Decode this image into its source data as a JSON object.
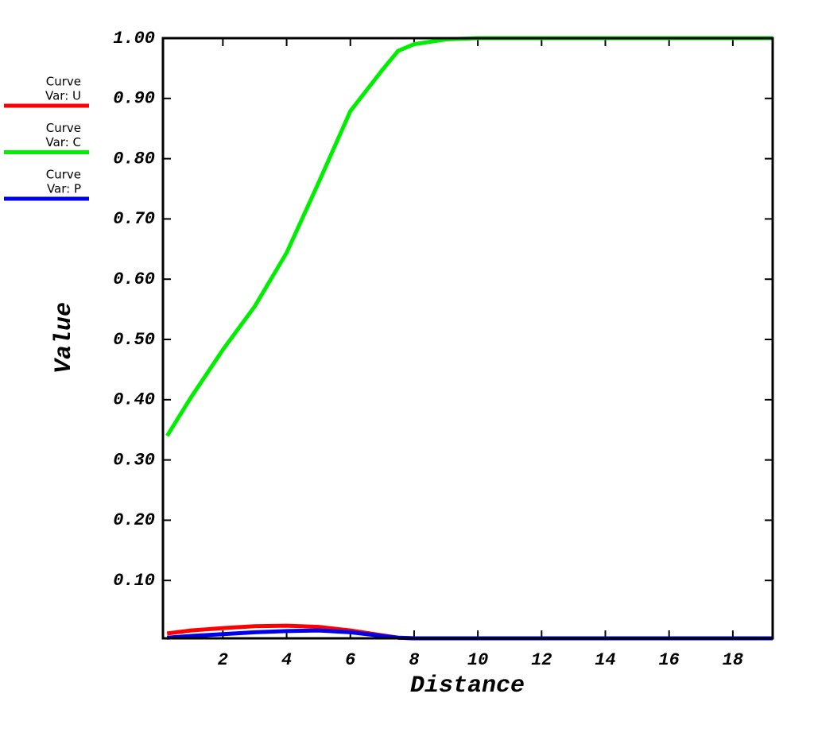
{
  "chart_data": {
    "type": "line",
    "x_label": "Distance",
    "y_label": "Value",
    "x": [
      0.25,
      1,
      2,
      3,
      4,
      5,
      6,
      7,
      7.5,
      8,
      9,
      10,
      12,
      14,
      16,
      18,
      19.25
    ],
    "series": [
      {
        "name": "Var: U",
        "label": "Curve",
        "color": "#ff0000",
        "values": [
          0.012,
          0.017,
          0.021,
          0.024,
          0.025,
          0.023,
          0.017,
          0.009,
          0.005,
          0.004,
          0.004,
          0.004,
          0.004,
          0.004,
          0.004,
          0.004,
          0.004
        ]
      },
      {
        "name": "Var: C",
        "label": "Curve",
        "color": "#00ee00",
        "values": [
          0.34,
          0.404,
          0.483,
          0.555,
          0.644,
          0.76,
          0.879,
          0.947,
          0.979,
          0.99,
          0.998,
          1.0,
          1.0,
          1.0,
          1.0,
          1.0,
          1.0
        ]
      },
      {
        "name": "Var: P",
        "label": "Curve",
        "color": "#0000ee",
        "values": [
          0.005,
          0.008,
          0.011,
          0.014,
          0.016,
          0.017,
          0.014,
          0.008,
          0.005,
          0.004,
          0.004,
          0.004,
          0.004,
          0.004,
          0.004,
          0.004,
          0.004
        ]
      }
    ],
    "xlim": [
      0.12,
      19.25
    ],
    "ylim": [
      0.004,
      1.0
    ],
    "xticks": [
      2,
      4,
      6,
      8,
      10,
      12,
      14,
      16,
      18
    ],
    "yticks": [
      {
        "value": 0.1,
        "label": "0.10"
      },
      {
        "value": 0.2,
        "label": "0.20"
      },
      {
        "value": 0.3,
        "label": "0.30"
      },
      {
        "value": 0.4,
        "label": "0.40"
      },
      {
        "value": 0.5,
        "label": "0.50"
      },
      {
        "value": 0.6,
        "label": "0.60"
      },
      {
        "value": 0.7,
        "label": "0.70"
      },
      {
        "value": 0.8,
        "label": "0.80"
      },
      {
        "value": 0.9,
        "label": "0.90"
      },
      {
        "value": 1.0,
        "label": "1.00"
      }
    ],
    "grid": false
  }
}
